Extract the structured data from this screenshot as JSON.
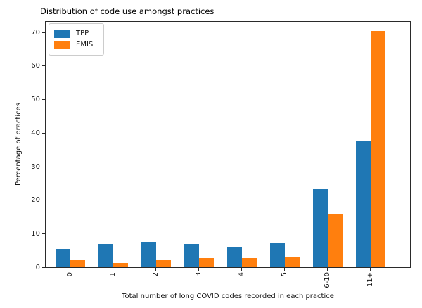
{
  "chart_data": {
    "type": "bar",
    "title": "Distribution of code use amongst practices",
    "xlabel": "Total number of long COVID codes recorded in each practice",
    "ylabel": "Percentage of practices",
    "categories": [
      "0",
      "1",
      "2",
      "3",
      "4",
      "5",
      "6-10",
      "11+"
    ],
    "series": [
      {
        "name": "TPP",
        "color": "#1f77b4",
        "values": [
          5.4,
          6.9,
          7.5,
          6.9,
          6.0,
          7.1,
          23.2,
          37.5
        ]
      },
      {
        "name": "EMIS",
        "color": "#ff7f0e",
        "values": [
          2.0,
          1.3,
          2.0,
          2.8,
          2.8,
          3.0,
          15.9,
          70.4
        ]
      }
    ],
    "yticks": [
      0,
      10,
      20,
      30,
      40,
      50,
      60,
      70
    ],
    "ylim": [
      0,
      73.5
    ],
    "grid": false,
    "legend_position": "upper left",
    "bar_width_ratio": 0.35
  }
}
